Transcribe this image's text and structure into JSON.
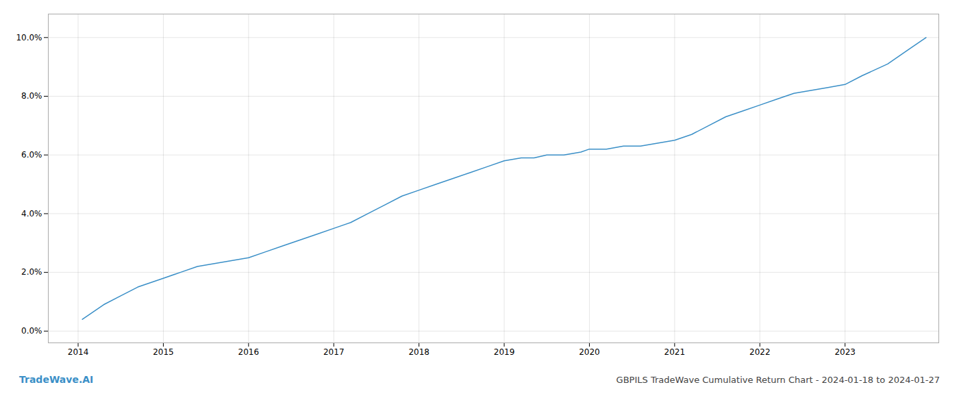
{
  "chart_data": {
    "type": "line",
    "title": "GBPILS TradeWave Cumulative Return Chart - 2024-01-18 to 2024-01-27",
    "annotations": [
      {
        "text": "TradeWave.AI",
        "color": "#3a8fc7"
      }
    ],
    "color": "#3a8fc7",
    "grid": true,
    "x": [
      2014.05,
      2014.15,
      2014.3,
      2014.5,
      2014.7,
      2014.9,
      2015.0,
      2015.2,
      2015.4,
      2015.6,
      2015.8,
      2016.0,
      2016.2,
      2016.4,
      2016.6,
      2016.8,
      2017.0,
      2017.2,
      2017.4,
      2017.6,
      2017.8,
      2018.0,
      2018.2,
      2018.4,
      2018.6,
      2018.8,
      2019.0,
      2019.2,
      2019.35,
      2019.5,
      2019.7,
      2019.9,
      2020.0,
      2020.2,
      2020.4,
      2020.6,
      2020.8,
      2021.0,
      2021.2,
      2021.4,
      2021.6,
      2021.8,
      2022.0,
      2022.2,
      2022.4,
      2022.6,
      2022.8,
      2023.0,
      2023.2,
      2023.5,
      2023.75,
      2023.95
    ],
    "values": [
      0.004,
      0.006,
      0.009,
      0.012,
      0.015,
      0.017,
      0.018,
      0.02,
      0.022,
      0.023,
      0.024,
      0.025,
      0.027,
      0.029,
      0.031,
      0.033,
      0.035,
      0.037,
      0.04,
      0.043,
      0.046,
      0.048,
      0.05,
      0.052,
      0.054,
      0.056,
      0.058,
      0.059,
      0.059,
      0.06,
      0.06,
      0.061,
      0.062,
      0.062,
      0.063,
      0.063,
      0.064,
      0.065,
      0.067,
      0.07,
      0.073,
      0.075,
      0.077,
      0.079,
      0.081,
      0.082,
      0.083,
      0.084,
      0.087,
      0.091,
      0.096,
      0.1
    ],
    "xlim": [
      2013.65,
      2024.1
    ],
    "ylim": [
      -0.004,
      0.108
    ],
    "xticks": [
      2014,
      2015,
      2016,
      2017,
      2018,
      2019,
      2020,
      2021,
      2022,
      2023
    ],
    "yticks": [
      {
        "value": 0.0,
        "label": "0.0%"
      },
      {
        "value": 0.02,
        "label": "2.0%"
      },
      {
        "value": 0.04,
        "label": "4.0%"
      },
      {
        "value": 0.06,
        "label": "6.0%"
      },
      {
        "value": 0.08,
        "label": "8.0%"
      },
      {
        "value": 0.1,
        "label": "10.0%"
      }
    ]
  }
}
